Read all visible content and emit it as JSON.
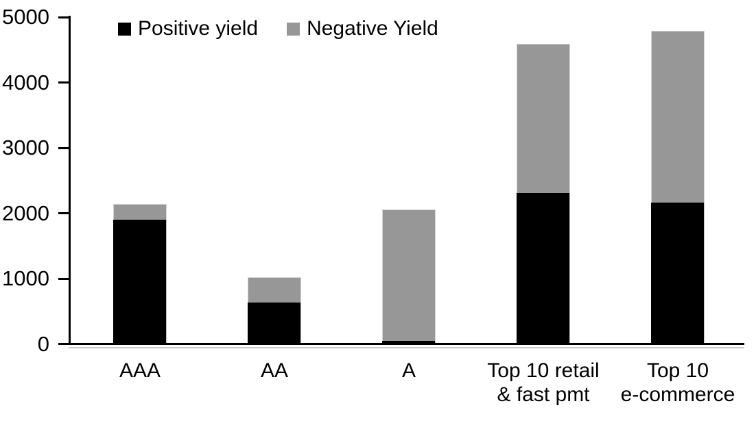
{
  "chart_data": {
    "type": "bar",
    "variant": "stacked-column",
    "title": "",
    "xlabel": "",
    "ylabel": "",
    "ylim": [
      0,
      5000
    ],
    "yticks": [
      0,
      1000,
      2000,
      3000,
      4000,
      5000
    ],
    "grid": false,
    "legend_position": "top",
    "categories": [
      "AAA",
      "AA",
      "A",
      "Top 10 retail & fast pmt",
      "Top 10 e-commerce"
    ],
    "category_label_lines": [
      [
        "AAA"
      ],
      [
        "AA"
      ],
      [
        "A"
      ],
      [
        "Top 10 retail",
        "& fast pmt"
      ],
      [
        "Top 10",
        "e-commerce"
      ]
    ],
    "series": [
      {
        "name": "Positive yield",
        "color": "#000000",
        "values": [
          1900,
          630,
          50,
          2310,
          2160
        ]
      },
      {
        "name": "Negative Yield",
        "color": "#979797",
        "values": [
          240,
          390,
          2010,
          2280,
          2630
        ]
      }
    ],
    "totals": [
      2140,
      1020,
      2060,
      4590,
      4790
    ]
  },
  "legend": {
    "items": [
      {
        "label": "Positive yield",
        "color": "#000000"
      },
      {
        "label": "Negative Yield",
        "color": "#979797"
      }
    ]
  },
  "colors": {
    "axis": "#000000",
    "axis_shadow": "#c9c9c9",
    "background": "#ffffff",
    "text": "#000000"
  }
}
